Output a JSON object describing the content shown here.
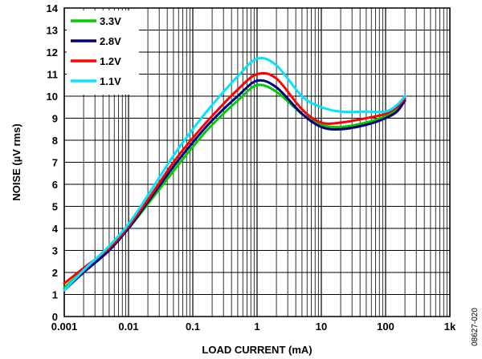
{
  "chart_data": {
    "type": "line",
    "xlabel": "LOAD CURRENT (mA)",
    "ylabel": "NOISE (µV rms)",
    "figure_id": "08627-020",
    "x_scale": "log",
    "xlim": [
      0.001,
      1000
    ],
    "ylim": [
      0,
      14
    ],
    "x_ticks": [
      0.001,
      0.01,
      0.1,
      1,
      10,
      100,
      1000
    ],
    "x_tick_labels": [
      "0.001",
      "0.01",
      "0.1",
      "1",
      "10",
      "100",
      "1k"
    ],
    "y_ticks": [
      0,
      1,
      2,
      3,
      4,
      5,
      6,
      7,
      8,
      9,
      10,
      11,
      12,
      13,
      14
    ],
    "grid": true,
    "legend_position": "top-left",
    "series": [
      {
        "name": "3.3V",
        "color": "#00cc00",
        "x": [
          0.001,
          0.002,
          0.005,
          0.01,
          0.02,
          0.05,
          0.1,
          0.2,
          0.5,
          1,
          2,
          5,
          10,
          20,
          50,
          100,
          150,
          200
        ],
        "y": [
          1.3,
          2.1,
          3.1,
          4.0,
          5.1,
          6.6,
          7.7,
          8.7,
          9.8,
          10.5,
          10.2,
          9.2,
          8.7,
          8.6,
          8.8,
          9.1,
          9.4,
          9.9
        ]
      },
      {
        "name": "2.8V",
        "color": "#000080",
        "x": [
          0.001,
          0.002,
          0.005,
          0.01,
          0.02,
          0.05,
          0.1,
          0.2,
          0.5,
          1,
          2,
          5,
          10,
          20,
          50,
          100,
          150,
          200
        ],
        "y": [
          1.2,
          2.0,
          3.0,
          4.0,
          5.2,
          6.8,
          7.9,
          8.9,
          10.0,
          10.7,
          10.4,
          9.2,
          8.6,
          8.5,
          8.7,
          9.0,
          9.3,
          9.8
        ]
      },
      {
        "name": "1.2V",
        "color": "#ff0000",
        "x": [
          0.001,
          0.002,
          0.005,
          0.01,
          0.02,
          0.05,
          0.1,
          0.2,
          0.5,
          1,
          2,
          5,
          10,
          20,
          50,
          100,
          150,
          200
        ],
        "y": [
          1.5,
          2.2,
          3.1,
          4.1,
          5.3,
          7.0,
          8.1,
          9.1,
          10.3,
          11.0,
          10.8,
          9.4,
          8.8,
          8.8,
          9.0,
          9.2,
          9.5,
          9.9
        ]
      },
      {
        "name": "1.1V",
        "color": "#00e5ff",
        "x": [
          0.001,
          0.002,
          0.005,
          0.01,
          0.02,
          0.05,
          0.1,
          0.2,
          0.5,
          1,
          2,
          5,
          10,
          20,
          50,
          100,
          150,
          200
        ],
        "y": [
          1.2,
          2.1,
          3.2,
          4.2,
          5.5,
          7.3,
          8.5,
          9.6,
          10.9,
          11.7,
          11.4,
          10.0,
          9.5,
          9.3,
          9.3,
          9.3,
          9.6,
          10.0
        ]
      }
    ]
  }
}
